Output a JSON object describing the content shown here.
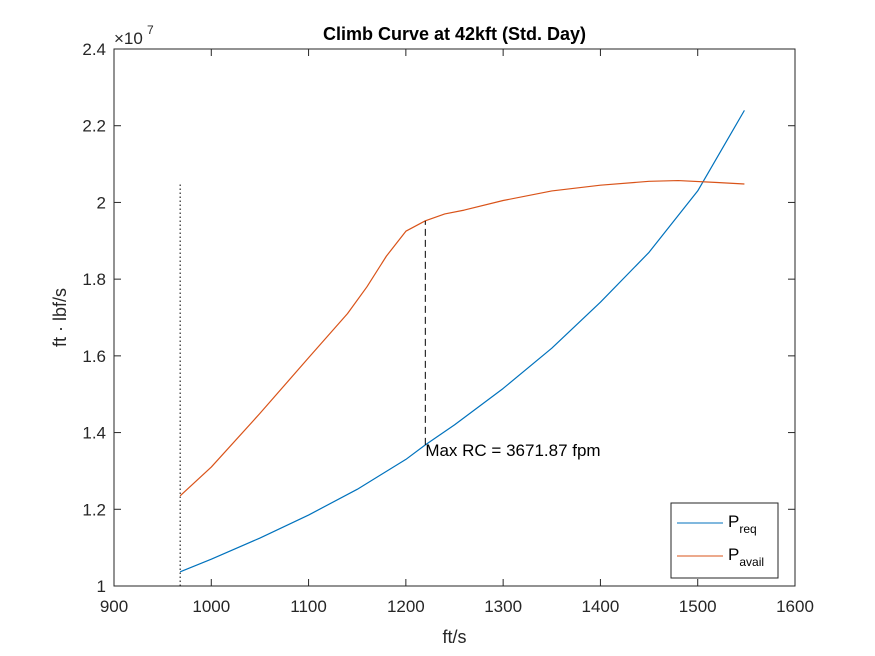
{
  "chart_data": {
    "type": "line",
    "title": "Climb Curve at 42kft (Std. Day)",
    "xlabel": "ft/s",
    "ylabel": "ft · lbf/s",
    "y_exponent_label": "×10",
    "y_exponent_power": "7",
    "y_multiplier": 10000000,
    "xlim": [
      900,
      1600
    ],
    "ylim": [
      1.0,
      2.4
    ],
    "x_ticks": [
      900,
      1000,
      1100,
      1200,
      1300,
      1400,
      1500,
      1600
    ],
    "y_ticks": [
      1.0,
      1.2,
      1.4,
      1.6,
      1.8,
      2.0,
      2.2,
      2.4
    ],
    "x_tick_labels": [
      "900",
      "1000",
      "1100",
      "1200",
      "1300",
      "1400",
      "1500",
      "1600"
    ],
    "y_tick_labels": [
      "1",
      "1.2",
      "1.4",
      "1.6",
      "1.8",
      "2",
      "2.2",
      "2.4"
    ],
    "grid": false,
    "legend_position": "bottom-right",
    "series": [
      {
        "name": "P",
        "subscript": "req",
        "color": "#0072BD",
        "style": "solid",
        "x": [
          968,
          1000,
          1050,
          1100,
          1150,
          1200,
          1220,
          1250,
          1300,
          1350,
          1400,
          1450,
          1500,
          1548
        ],
        "y": [
          1.037,
          1.07,
          1.125,
          1.185,
          1.252,
          1.33,
          1.368,
          1.42,
          1.515,
          1.62,
          1.74,
          1.87,
          2.03,
          2.24
        ]
      },
      {
        "name": "P",
        "subscript": "avail",
        "color": "#D95319",
        "style": "solid",
        "x": [
          968,
          1000,
          1050,
          1100,
          1140,
          1160,
          1180,
          1200,
          1220,
          1240,
          1260,
          1300,
          1350,
          1400,
          1450,
          1480,
          1520,
          1548
        ],
        "y": [
          1.235,
          1.31,
          1.45,
          1.595,
          1.71,
          1.78,
          1.86,
          1.925,
          1.952,
          1.97,
          1.98,
          2.005,
          2.03,
          2.045,
          2.055,
          2.057,
          2.052,
          2.048
        ]
      }
    ],
    "reference_lines": [
      {
        "kind": "dotted",
        "x": 968,
        "y_from": 1.0,
        "y_to": 2.05,
        "color": "#000000"
      },
      {
        "kind": "dashed",
        "x": 1220,
        "y_from": 1.368,
        "y_to": 1.952,
        "color": "#000000"
      }
    ],
    "annotation": {
      "text": "Max RC = 3671.87 fpm",
      "x": 1220,
      "y": 1.35
    }
  }
}
